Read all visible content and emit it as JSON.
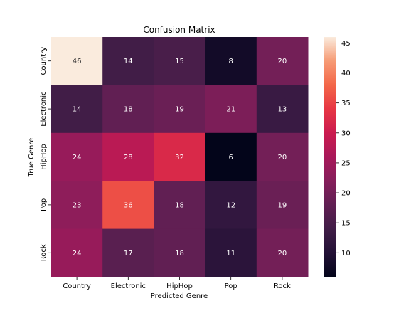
{
  "chart_data": {
    "type": "heatmap",
    "title": "Confusion Matrix",
    "xlabel": "Predicted Genre",
    "ylabel": "True Genre",
    "x_categories": [
      "Country",
      "Electronic",
      "HipHop",
      "Pop",
      "Rock"
    ],
    "y_categories": [
      "Country",
      "Electronic",
      "HipHop",
      "Pop",
      "Rock"
    ],
    "values": [
      [
        46,
        14,
        15,
        8,
        20
      ],
      [
        14,
        18,
        19,
        21,
        13
      ],
      [
        24,
        28,
        32,
        6,
        20
      ],
      [
        23,
        36,
        18,
        12,
        19
      ],
      [
        24,
        17,
        18,
        11,
        20
      ]
    ],
    "colormap": "rocket",
    "vmin": 6,
    "vmax": 46,
    "colorbar_ticks": [
      10,
      15,
      20,
      25,
      30,
      35,
      40,
      45
    ],
    "grid": false,
    "annotate": true
  }
}
